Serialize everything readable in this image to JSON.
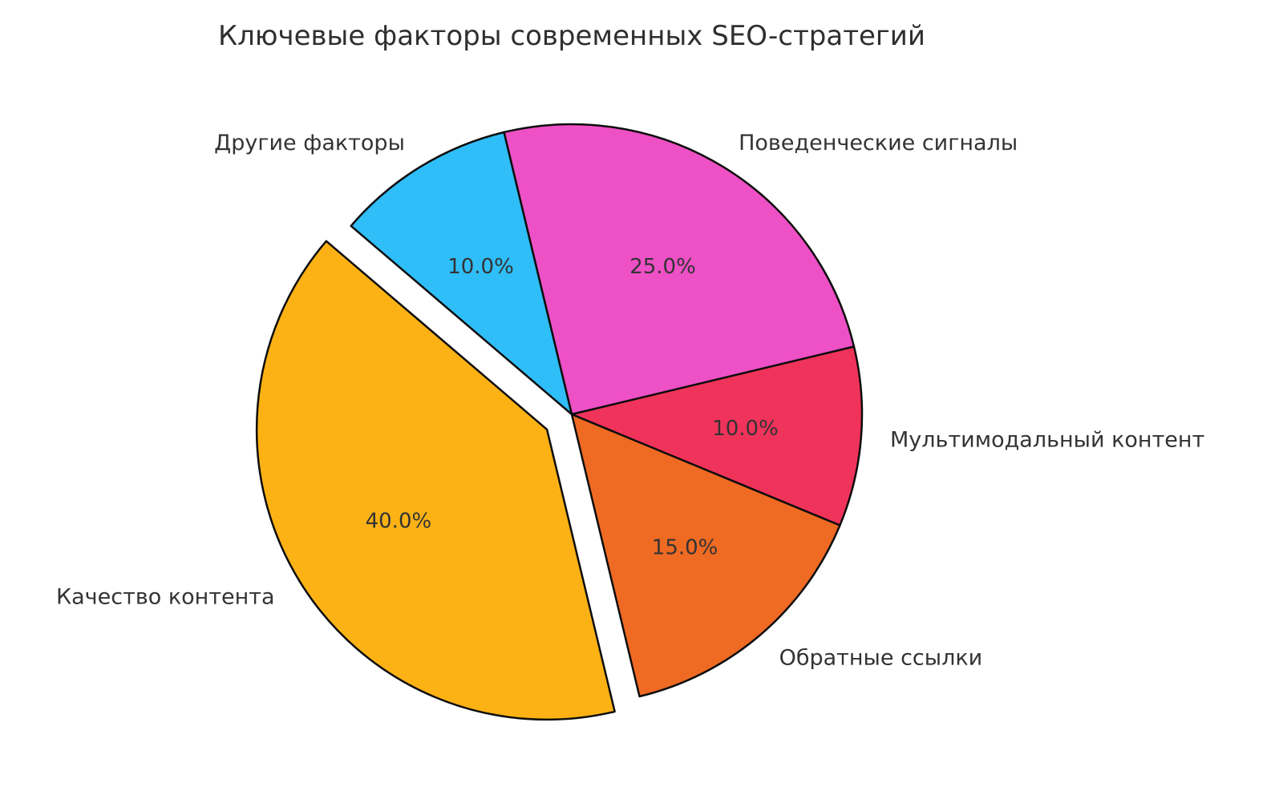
{
  "chart_data": {
    "type": "pie",
    "title": "Ключевые факторы современных SEO-стратегий",
    "direction": "clockwise",
    "start_angle_deg": 103.5,
    "labeldistance": 1.1,
    "pctdistance": 0.6,
    "legend": "none",
    "grid": false,
    "title_color": "#2f2f2f",
    "text_color": "#333333",
    "edge_color": "#0d0d0d",
    "slices": [
      {
        "label": "Поведенческие сигналы",
        "value": 25.0,
        "percent_label": "25.0%",
        "color": "#ee50c5",
        "explode": 0
      },
      {
        "label": "Мультимодальный контент",
        "value": 10.0,
        "percent_label": "10.0%",
        "color": "#f0335a",
        "explode": 0
      },
      {
        "label": "Обратные ссылки",
        "value": 15.0,
        "percent_label": "15.0%",
        "color": "#ef6a23",
        "explode": 0
      },
      {
        "label": "Качество контента",
        "value": 40.0,
        "percent_label": "40.0%",
        "color": "#fcb215",
        "explode": 0.1
      },
      {
        "label": "Другие факторы",
        "value": 10.0,
        "percent_label": "10.0%",
        "color": "#2fbef8",
        "explode": 0
      }
    ]
  }
}
